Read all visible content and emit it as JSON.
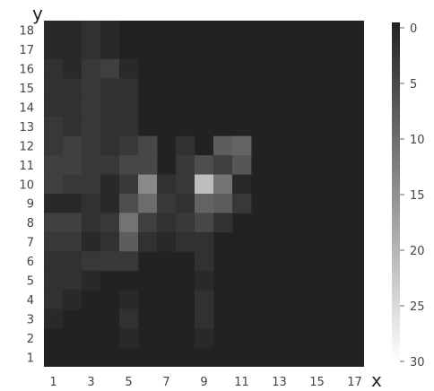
{
  "chart_data": {
    "type": "heatmap",
    "title": "",
    "xlabel": "x",
    "ylabel": "y",
    "x_range": [
      1,
      17
    ],
    "y_range": [
      1,
      18
    ],
    "x_ticks": [
      "1",
      "3",
      "5",
      "7",
      "9",
      "11",
      "13",
      "15",
      "17"
    ],
    "y_ticks": [
      "1",
      "2",
      "3",
      "4",
      "5",
      "6",
      "7",
      "8",
      "9",
      "10",
      "11",
      "12",
      "13",
      "14",
      "15",
      "16",
      "17",
      "18"
    ],
    "colorbar": {
      "ticks": [
        "0",
        "5",
        "10",
        "15",
        "20",
        "25",
        "30"
      ],
      "range": [
        0,
        30
      ],
      "low_color": "#222222",
      "high_color": "#ffffff"
    },
    "cells": [
      {
        "x": 1,
        "y": 18,
        "v": 1
      },
      {
        "x": 2,
        "y": 18,
        "v": 1
      },
      {
        "x": 3,
        "y": 18,
        "v": 2
      },
      {
        "x": 4,
        "y": 18,
        "v": 1
      },
      {
        "x": 1,
        "y": 17,
        "v": 1
      },
      {
        "x": 2,
        "y": 17,
        "v": 1
      },
      {
        "x": 3,
        "y": 17,
        "v": 2
      },
      {
        "x": 4,
        "y": 17,
        "v": 1
      },
      {
        "x": 1,
        "y": 16,
        "v": 2
      },
      {
        "x": 2,
        "y": 16,
        "v": 1
      },
      {
        "x": 3,
        "y": 16,
        "v": 3
      },
      {
        "x": 4,
        "y": 16,
        "v": 4
      },
      {
        "x": 5,
        "y": 16,
        "v": 1
      },
      {
        "x": 1,
        "y": 15,
        "v": 2
      },
      {
        "x": 2,
        "y": 15,
        "v": 2
      },
      {
        "x": 3,
        "y": 15,
        "v": 3
      },
      {
        "x": 4,
        "y": 15,
        "v": 2
      },
      {
        "x": 5,
        "y": 15,
        "v": 2
      },
      {
        "x": 1,
        "y": 14,
        "v": 2
      },
      {
        "x": 2,
        "y": 14,
        "v": 2
      },
      {
        "x": 3,
        "y": 14,
        "v": 3
      },
      {
        "x": 4,
        "y": 14,
        "v": 2
      },
      {
        "x": 5,
        "y": 14,
        "v": 2
      },
      {
        "x": 1,
        "y": 13,
        "v": 3
      },
      {
        "x": 2,
        "y": 13,
        "v": 2
      },
      {
        "x": 3,
        "y": 13,
        "v": 3
      },
      {
        "x": 4,
        "y": 13,
        "v": 2
      },
      {
        "x": 5,
        "y": 13,
        "v": 2
      },
      {
        "x": 1,
        "y": 12,
        "v": 3
      },
      {
        "x": 2,
        "y": 12,
        "v": 4
      },
      {
        "x": 3,
        "y": 12,
        "v": 3
      },
      {
        "x": 4,
        "y": 12,
        "v": 2
      },
      {
        "x": 5,
        "y": 12,
        "v": 3
      },
      {
        "x": 6,
        "y": 12,
        "v": 5
      },
      {
        "x": 8,
        "y": 12,
        "v": 2
      },
      {
        "x": 10,
        "y": 12,
        "v": 8
      },
      {
        "x": 11,
        "y": 12,
        "v": 9
      },
      {
        "x": 1,
        "y": 11,
        "v": 4
      },
      {
        "x": 2,
        "y": 11,
        "v": 4
      },
      {
        "x": 3,
        "y": 11,
        "v": 3
      },
      {
        "x": 4,
        "y": 11,
        "v": 3
      },
      {
        "x": 5,
        "y": 11,
        "v": 5
      },
      {
        "x": 6,
        "y": 11,
        "v": 5
      },
      {
        "x": 8,
        "y": 11,
        "v": 3
      },
      {
        "x": 9,
        "y": 11,
        "v": 6
      },
      {
        "x": 10,
        "y": 11,
        "v": 4
      },
      {
        "x": 11,
        "y": 11,
        "v": 7
      },
      {
        "x": 1,
        "y": 10,
        "v": 4
      },
      {
        "x": 2,
        "y": 10,
        "v": 3
      },
      {
        "x": 3,
        "y": 10,
        "v": 3
      },
      {
        "x": 4,
        "y": 10,
        "v": 1
      },
      {
        "x": 5,
        "y": 10,
        "v": 3
      },
      {
        "x": 6,
        "y": 10,
        "v": 14
      },
      {
        "x": 7,
        "y": 10,
        "v": 2
      },
      {
        "x": 8,
        "y": 10,
        "v": 3
      },
      {
        "x": 9,
        "y": 10,
        "v": 21
      },
      {
        "x": 10,
        "y": 10,
        "v": 11
      },
      {
        "x": 11,
        "y": 10,
        "v": 1
      },
      {
        "x": 1,
        "y": 9,
        "v": 1
      },
      {
        "x": 2,
        "y": 9,
        "v": 1
      },
      {
        "x": 3,
        "y": 9,
        "v": 2
      },
      {
        "x": 4,
        "y": 9,
        "v": 1
      },
      {
        "x": 5,
        "y": 9,
        "v": 6
      },
      {
        "x": 6,
        "y": 9,
        "v": 10
      },
      {
        "x": 7,
        "y": 9,
        "v": 3
      },
      {
        "x": 8,
        "y": 9,
        "v": 2
      },
      {
        "x": 9,
        "y": 9,
        "v": 9
      },
      {
        "x": 10,
        "y": 9,
        "v": 8
      },
      {
        "x": 11,
        "y": 9,
        "v": 3
      },
      {
        "x": 1,
        "y": 8,
        "v": 4
      },
      {
        "x": 2,
        "y": 8,
        "v": 4
      },
      {
        "x": 3,
        "y": 8,
        "v": 2
      },
      {
        "x": 4,
        "y": 8,
        "v": 3
      },
      {
        "x": 5,
        "y": 8,
        "v": 11
      },
      {
        "x": 6,
        "y": 8,
        "v": 4
      },
      {
        "x": 7,
        "y": 8,
        "v": 2
      },
      {
        "x": 8,
        "y": 8,
        "v": 3
      },
      {
        "x": 9,
        "y": 8,
        "v": 5
      },
      {
        "x": 10,
        "y": 8,
        "v": 2
      },
      {
        "x": 1,
        "y": 7,
        "v": 3
      },
      {
        "x": 2,
        "y": 7,
        "v": 3
      },
      {
        "x": 3,
        "y": 7,
        "v": 1
      },
      {
        "x": 4,
        "y": 7,
        "v": 2
      },
      {
        "x": 5,
        "y": 7,
        "v": 8
      },
      {
        "x": 6,
        "y": 7,
        "v": 2
      },
      {
        "x": 7,
        "y": 7,
        "v": 1
      },
      {
        "x": 8,
        "y": 7,
        "v": 2
      },
      {
        "x": 9,
        "y": 7,
        "v": 2
      },
      {
        "x": 1,
        "y": 6,
        "v": 2
      },
      {
        "x": 2,
        "y": 6,
        "v": 2
      },
      {
        "x": 3,
        "y": 6,
        "v": 3
      },
      {
        "x": 4,
        "y": 6,
        "v": 3
      },
      {
        "x": 5,
        "y": 6,
        "v": 3
      },
      {
        "x": 9,
        "y": 6,
        "v": 2
      },
      {
        "x": 1,
        "y": 5,
        "v": 2
      },
      {
        "x": 2,
        "y": 5,
        "v": 2
      },
      {
        "x": 3,
        "y": 5,
        "v": 1
      },
      {
        "x": 9,
        "y": 5,
        "v": 1
      },
      {
        "x": 1,
        "y": 4,
        "v": 2
      },
      {
        "x": 2,
        "y": 4,
        "v": 1
      },
      {
        "x": 5,
        "y": 4,
        "v": 1
      },
      {
        "x": 9,
        "y": 4,
        "v": 2
      },
      {
        "x": 1,
        "y": 3,
        "v": 1
      },
      {
        "x": 5,
        "y": 3,
        "v": 2
      },
      {
        "x": 9,
        "y": 3,
        "v": 2
      },
      {
        "x": 5,
        "y": 2,
        "v": 1
      },
      {
        "x": 9,
        "y": 2,
        "v": 1
      }
    ]
  }
}
